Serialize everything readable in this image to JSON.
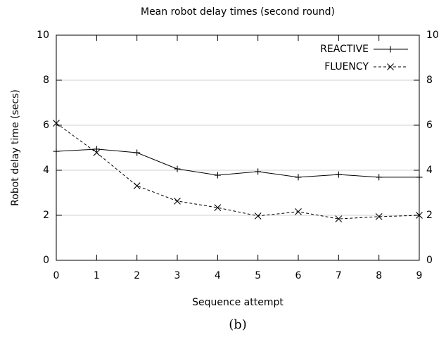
{
  "chart_data": {
    "type": "line",
    "title": "Mean robot delay times (second round)",
    "xlabel": "Sequence attempt",
    "ylabel": "Robot delay time (secs)",
    "caption": "(b)",
    "x": [
      0,
      1,
      2,
      3,
      4,
      5,
      6,
      7,
      8,
      9
    ],
    "series": [
      {
        "name": "REACTIVE",
        "color": "#000000",
        "marker": "plus",
        "dashed": false,
        "values": [
          4.84,
          4.94,
          4.78,
          4.06,
          3.78,
          3.94,
          3.69,
          3.81,
          3.69,
          3.69
        ]
      },
      {
        "name": "FLUENCY",
        "color": "#000000",
        "marker": "cross",
        "dashed": true,
        "values": [
          6.09,
          4.78,
          3.31,
          2.63,
          2.34,
          1.97,
          2.16,
          1.84,
          1.94,
          2.0
        ]
      }
    ],
    "xlim": [
      0,
      9
    ],
    "xticks": [
      0,
      1,
      2,
      3,
      4,
      5,
      6,
      7,
      8,
      9
    ],
    "ylim": [
      0,
      10
    ],
    "yticks": [
      0,
      2,
      4,
      6,
      8,
      10
    ],
    "y2lim": [
      0,
      10
    ],
    "y2ticks": [
      0,
      2,
      4,
      6,
      8,
      10
    ],
    "grid": true,
    "legend": "top-right"
  }
}
